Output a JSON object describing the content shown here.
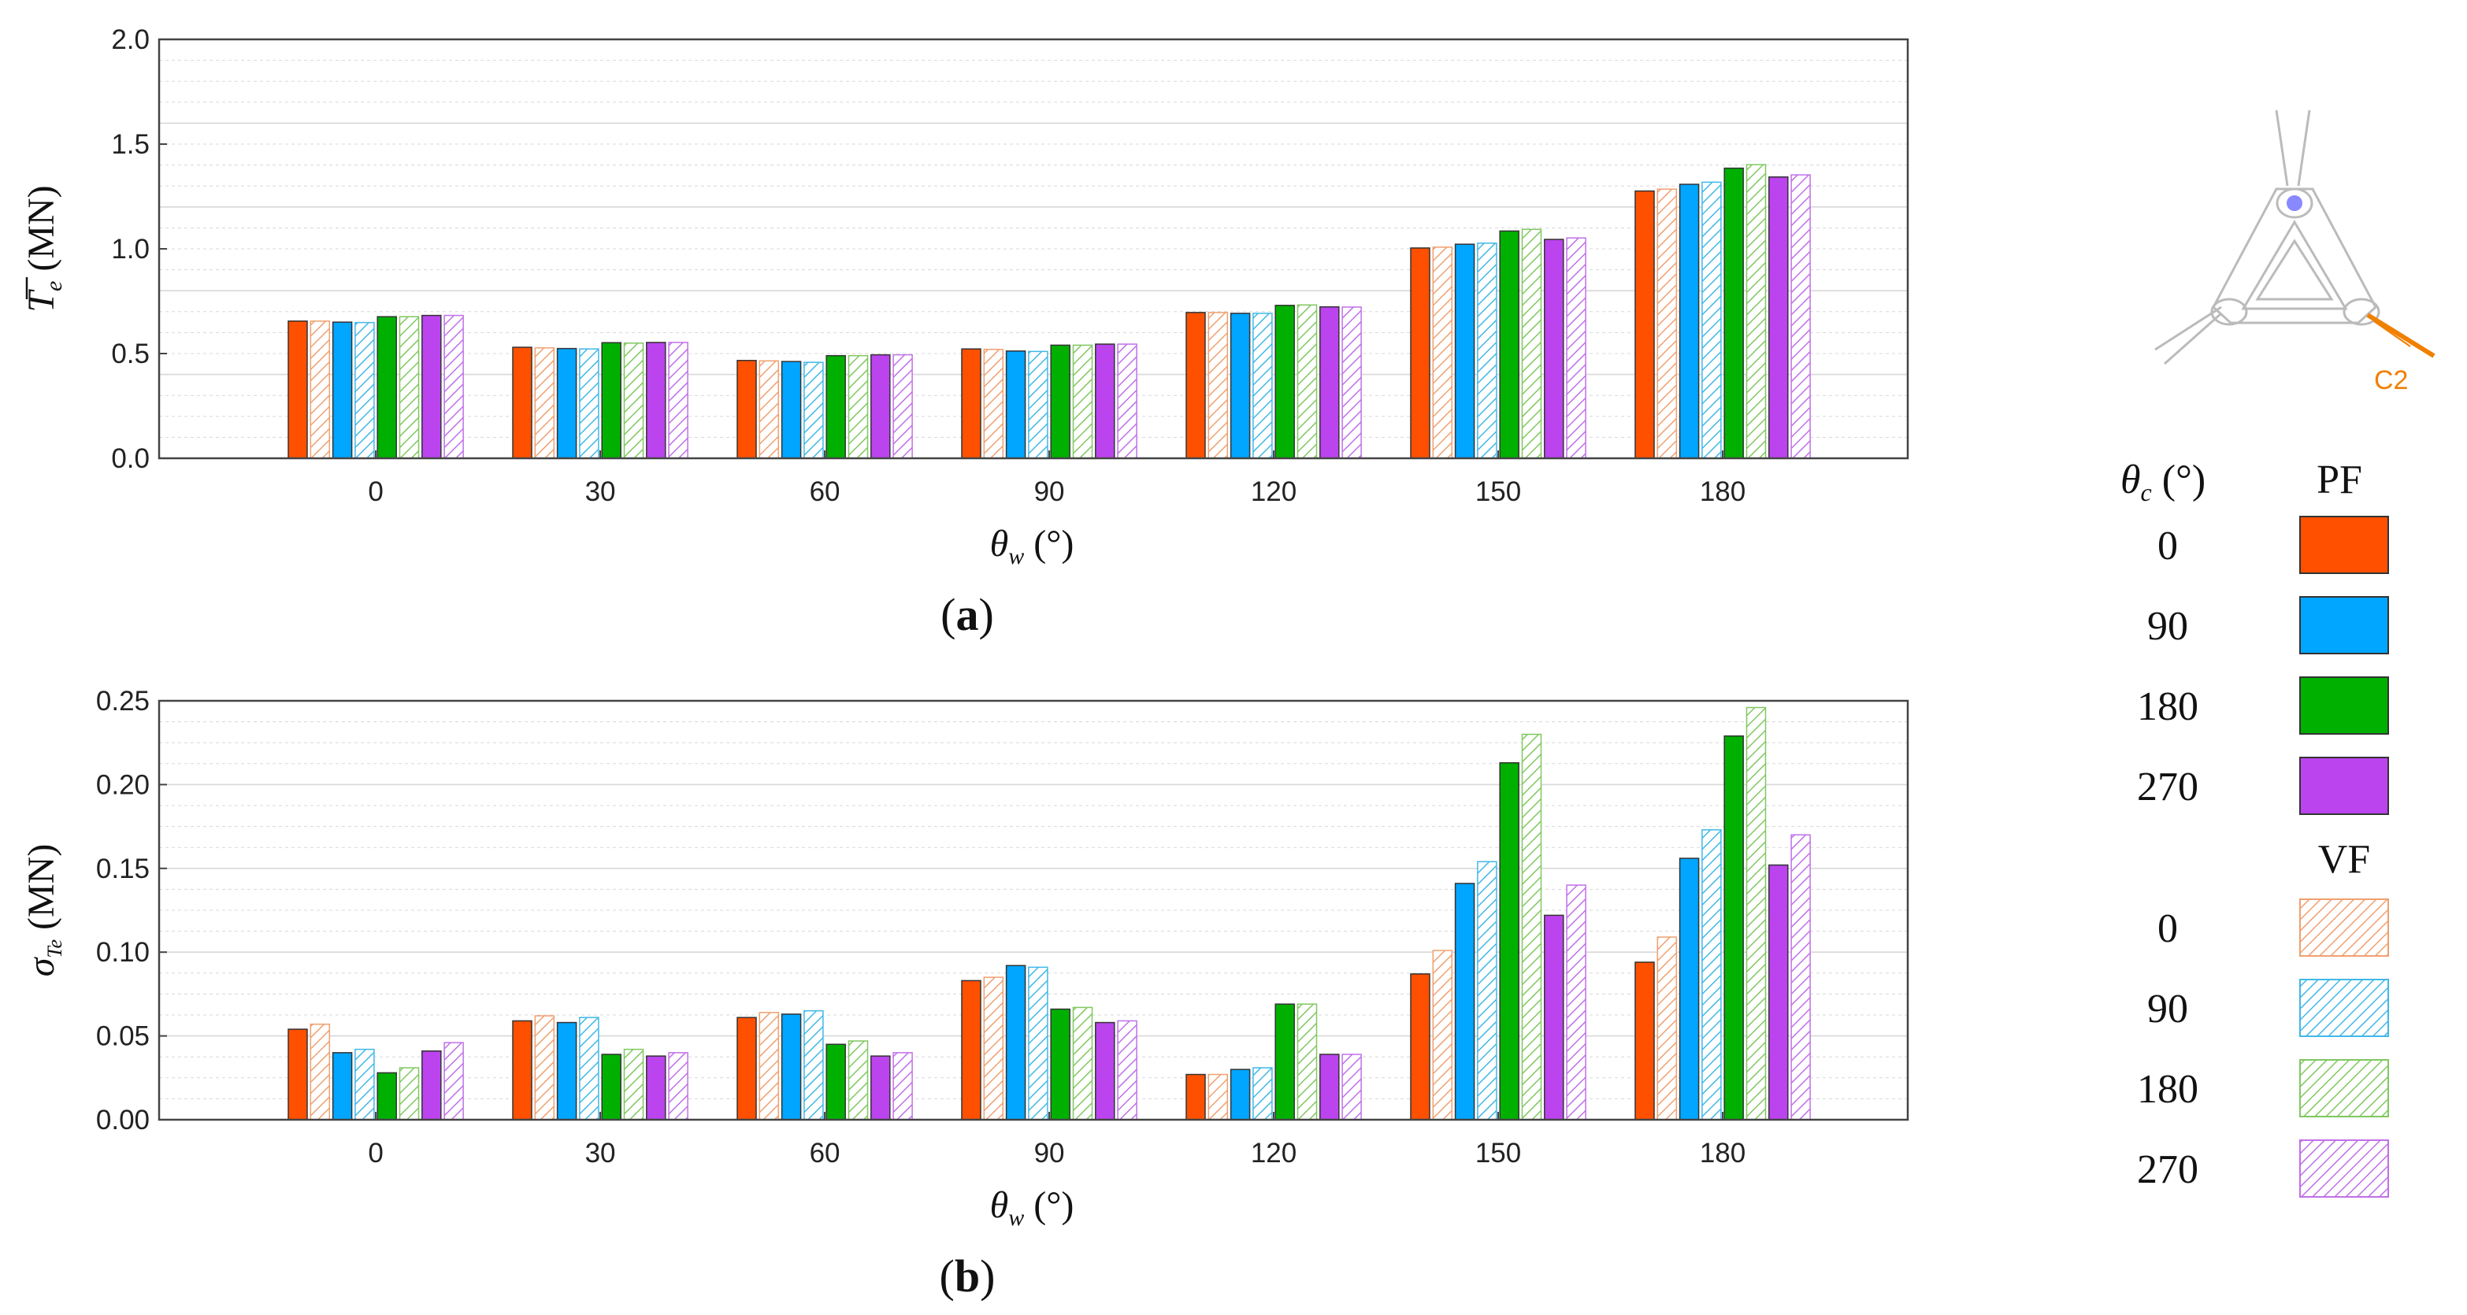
{
  "colors": {
    "s0": "#FF5000",
    "s90": "#00A6FF",
    "s180": "#00B000",
    "s270": "#BB44EE",
    "vf0": "#F0A070",
    "vf90": "#40B8E8",
    "vf180": "#80C860",
    "vf270": "#C070E8",
    "grid": "#D8D8D8",
    "cable": "#F08000",
    "diagram": "#BBBBBB",
    "buoy": "#8888FF"
  },
  "legend": {
    "theta_c_header": "θc (°)",
    "pf_header": "PF",
    "vf_header": "VF",
    "pf_entries": [
      {
        "label": "0",
        "series": "PF-0"
      },
      {
        "label": "90",
        "series": "PF-90"
      },
      {
        "label": "180",
        "series": "PF-180"
      },
      {
        "label": "270",
        "series": "PF-270"
      }
    ],
    "vf_entries": [
      {
        "label": "0",
        "series": "VF-0"
      },
      {
        "label": "90",
        "series": "VF-90"
      },
      {
        "label": "180",
        "series": "VF-180"
      },
      {
        "label": "270",
        "series": "VF-270"
      }
    ]
  },
  "diagram": {
    "cable_label": "C2"
  },
  "chart_data": [
    {
      "type": "bar",
      "panel_label": "(a)",
      "panel_letter": "a",
      "ylabel_symbol": "T",
      "ylabel_subscript": "e",
      "ylabel_unit": " (MN)",
      "xlabel_symbol": "θ",
      "xlabel_subscript": "w",
      "xlabel_unit": " (°)",
      "grid": true,
      "ylim": [
        0,
        2.0
      ],
      "yticks": [
        "0.0",
        "0.5",
        "1.0",
        "1.5",
        "2.0"
      ],
      "categories": [
        "0",
        "30",
        "60",
        "90",
        "120",
        "150",
        "180"
      ],
      "series": [
        {
          "name": "PF-0",
          "values": [
            0.655,
            0.53,
            0.467,
            0.522,
            0.696,
            1.004,
            1.276
          ]
        },
        {
          "name": "VF-0",
          "values": [
            0.655,
            0.527,
            0.465,
            0.52,
            0.696,
            1.008,
            1.285
          ]
        },
        {
          "name": "PF-90",
          "values": [
            0.65,
            0.524,
            0.462,
            0.512,
            0.692,
            1.022,
            1.308
          ]
        },
        {
          "name": "VF-90",
          "values": [
            0.648,
            0.522,
            0.458,
            0.51,
            0.692,
            1.027,
            1.318
          ]
        },
        {
          "name": "PF-180",
          "values": [
            0.676,
            0.552,
            0.49,
            0.54,
            0.73,
            1.085,
            1.385
          ]
        },
        {
          "name": "VF-180",
          "values": [
            0.676,
            0.55,
            0.49,
            0.54,
            0.732,
            1.093,
            1.402
          ]
        },
        {
          "name": "PF-270",
          "values": [
            0.682,
            0.553,
            0.494,
            0.545,
            0.723,
            1.045,
            1.343
          ]
        },
        {
          "name": "VF-270",
          "values": [
            0.682,
            0.553,
            0.494,
            0.545,
            0.722,
            1.052,
            1.353
          ]
        }
      ]
    },
    {
      "type": "bar",
      "panel_label": "(b)",
      "panel_letter": "b",
      "ylabel_symbol": "σ",
      "ylabel_subscript": "Te",
      "ylabel_unit": " (MN)",
      "xlabel_symbol": "θ",
      "xlabel_subscript": "w",
      "xlabel_unit": " (°)",
      "grid": true,
      "ylim": [
        0,
        0.25
      ],
      "yticks": [
        "0.00",
        "0.05",
        "0.10",
        "0.15",
        "0.20",
        "0.25"
      ],
      "categories": [
        "0",
        "30",
        "60",
        "90",
        "120",
        "150",
        "180"
      ],
      "series": [
        {
          "name": "PF-0",
          "values": [
            0.054,
            0.059,
            0.061,
            0.083,
            0.027,
            0.087,
            0.094
          ]
        },
        {
          "name": "VF-0",
          "values": [
            0.057,
            0.062,
            0.064,
            0.085,
            0.027,
            0.101,
            0.109
          ]
        },
        {
          "name": "PF-90",
          "values": [
            0.04,
            0.058,
            0.063,
            0.092,
            0.03,
            0.141,
            0.156
          ]
        },
        {
          "name": "VF-90",
          "values": [
            0.042,
            0.061,
            0.065,
            0.091,
            0.031,
            0.154,
            0.173
          ]
        },
        {
          "name": "PF-180",
          "values": [
            0.028,
            0.039,
            0.045,
            0.066,
            0.069,
            0.213,
            0.229
          ]
        },
        {
          "name": "VF-180",
          "values": [
            0.031,
            0.042,
            0.047,
            0.067,
            0.069,
            0.23,
            0.246
          ]
        },
        {
          "name": "PF-270",
          "values": [
            0.041,
            0.038,
            0.038,
            0.058,
            0.039,
            0.122,
            0.152
          ]
        },
        {
          "name": "VF-270",
          "values": [
            0.046,
            0.04,
            0.04,
            0.059,
            0.039,
            0.14,
            0.17
          ]
        }
      ]
    }
  ]
}
